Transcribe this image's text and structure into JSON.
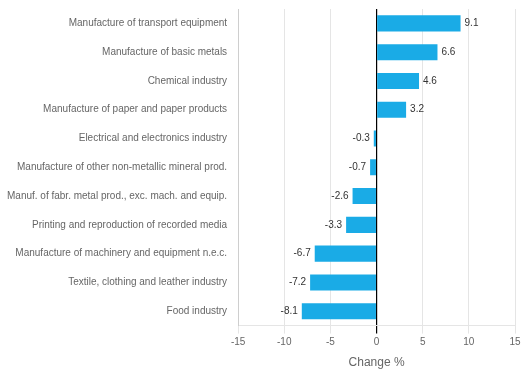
{
  "chart_data": {
    "type": "bar",
    "orientation": "horizontal",
    "categories": [
      "Food industry",
      "Textile, clothing and leather industry",
      "Manufacture of machinery and equipment n.e.c.",
      "Printing and reproduction of recorded media",
      "Manuf. of fabr. metal prod., exc. mach. and equip.",
      "Manufacture of other non-metallic mineral prod.",
      "Electrical and electronics industry",
      "Manufacture of paper and paper products",
      "Chemical industry",
      "Manufacture of basic metals",
      "Manufacture of transport equipment"
    ],
    "values": [
      -8.1,
      -7.2,
      -6.7,
      -3.3,
      -2.6,
      -0.7,
      -0.3,
      3.2,
      4.6,
      6.6,
      9.1
    ],
    "color": "#1aabe6",
    "xlabel": "Change %",
    "xlim": [
      -15,
      15
    ],
    "xticks": [
      -15,
      -10,
      -5,
      0,
      5,
      10,
      15
    ],
    "grid": true,
    "data_labels": true
  }
}
